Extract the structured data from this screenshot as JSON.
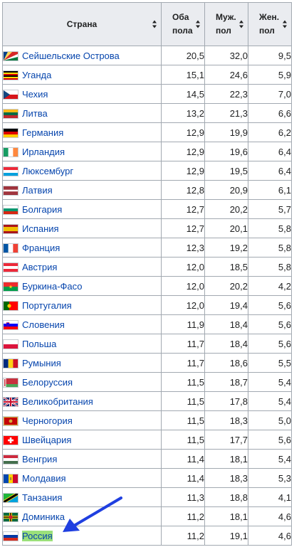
{
  "table": {
    "headers": {
      "country": "Страна",
      "both": "Оба пола",
      "male": "Муж. пол",
      "female": "Жен. пол"
    },
    "rows": [
      {
        "country": "Сейшельские Острова",
        "flag": "seychelles-flag-icon",
        "both": "20,5",
        "male": "32,0",
        "female": "9,5"
      },
      {
        "country": "Уганда",
        "flag": "uganda-flag-icon",
        "both": "15,1",
        "male": "24,6",
        "female": "5,9"
      },
      {
        "country": "Чехия",
        "flag": "czechia-flag-icon",
        "both": "14,5",
        "male": "22,3",
        "female": "7,0"
      },
      {
        "country": "Литва",
        "flag": "lithuania-flag-icon",
        "both": "13,2",
        "male": "21,3",
        "female": "6,6"
      },
      {
        "country": "Германия",
        "flag": "germany-flag-icon",
        "both": "12,9",
        "male": "19,9",
        "female": "6,2"
      },
      {
        "country": "Ирландия",
        "flag": "ireland-flag-icon",
        "both": "12,9",
        "male": "19,6",
        "female": "6,4"
      },
      {
        "country": "Люксембург",
        "flag": "luxembourg-flag-icon",
        "both": "12,9",
        "male": "19,5",
        "female": "6,4"
      },
      {
        "country": "Латвия",
        "flag": "latvia-flag-icon",
        "both": "12,8",
        "male": "20,9",
        "female": "6,1"
      },
      {
        "country": "Болгария",
        "flag": "bulgaria-flag-icon",
        "both": "12,7",
        "male": "20,2",
        "female": "5,7"
      },
      {
        "country": "Испания",
        "flag": "spain-flag-icon",
        "both": "12,7",
        "male": "20,1",
        "female": "5,8"
      },
      {
        "country": "Франция",
        "flag": "france-flag-icon",
        "both": "12,3",
        "male": "19,2",
        "female": "5,8"
      },
      {
        "country": "Австрия",
        "flag": "austria-flag-icon",
        "both": "12,0",
        "male": "18,5",
        "female": "5,8"
      },
      {
        "country": "Буркина-Фасо",
        "flag": "burkina-faso-flag-icon",
        "both": "12,0",
        "male": "20,2",
        "female": "4,2"
      },
      {
        "country": "Португалия",
        "flag": "portugal-flag-icon",
        "both": "12,0",
        "male": "19,4",
        "female": "5,6"
      },
      {
        "country": "Словения",
        "flag": "slovenia-flag-icon",
        "both": "11,9",
        "male": "18,4",
        "female": "5,6"
      },
      {
        "country": "Польша",
        "flag": "poland-flag-icon",
        "both": "11,7",
        "male": "18,4",
        "female": "5,6"
      },
      {
        "country": "Румыния",
        "flag": "romania-flag-icon",
        "both": "11,7",
        "male": "18,6",
        "female": "5,5"
      },
      {
        "country": "Белоруссия",
        "flag": "belarus-flag-icon",
        "both": "11,5",
        "male": "18,7",
        "female": "5,4"
      },
      {
        "country": "Великобритания",
        "flag": "uk-flag-icon",
        "both": "11,5",
        "male": "17,8",
        "female": "5,4"
      },
      {
        "country": "Черногория",
        "flag": "montenegro-flag-icon",
        "both": "11,5",
        "male": "18,3",
        "female": "5,0"
      },
      {
        "country": "Швейцария",
        "flag": "switzerland-flag-icon",
        "both": "11,5",
        "male": "17,7",
        "female": "5,6"
      },
      {
        "country": "Венгрия",
        "flag": "hungary-flag-icon",
        "both": "11,4",
        "male": "18,1",
        "female": "5,4"
      },
      {
        "country": "Молдавия",
        "flag": "moldova-flag-icon",
        "both": "11,4",
        "male": "18,3",
        "female": "5,3"
      },
      {
        "country": "Танзания",
        "flag": "tanzania-flag-icon",
        "both": "11,3",
        "male": "18,8",
        "female": "4,1"
      },
      {
        "country": "Доминика",
        "flag": "dominica-flag-icon",
        "both": "11,2",
        "male": "18,1",
        "female": "4,6"
      },
      {
        "country": "Россия",
        "flag": "russia-flag-icon",
        "both": "11,2",
        "male": "19,1",
        "female": "4,6",
        "highlighted": true
      }
    ]
  },
  "colors": {
    "link": "#0645ad",
    "header_bg": "#eaecf0",
    "border": "#a2a9b1",
    "highlight": "#9be07a",
    "arrow": "#1f3fe0"
  },
  "annotation": {
    "arrow_icon": "blue-arrow-icon",
    "points_to": "Россия"
  }
}
